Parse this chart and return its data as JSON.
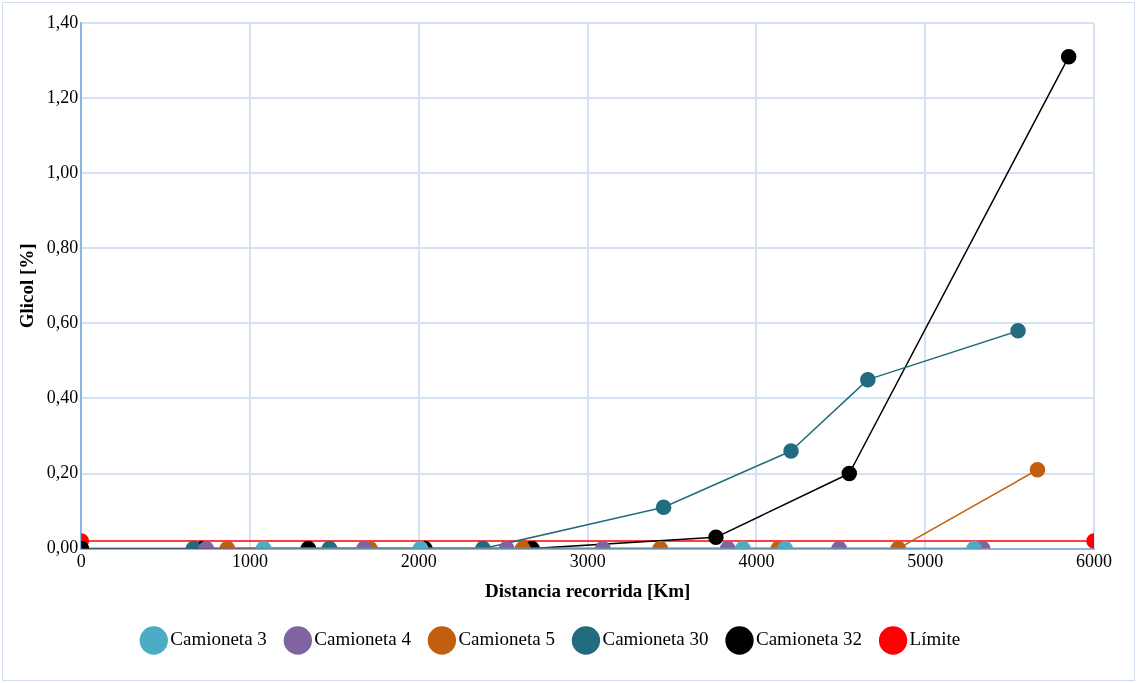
{
  "chart_data": {
    "type": "line",
    "xlabel": "Distancia recorrida [Km]",
    "ylabel": "Glicol [%]",
    "xlim": [
      0,
      6000
    ],
    "xticks": [
      0,
      1000,
      2000,
      3000,
      4000,
      5000,
      6000
    ],
    "ylim": [
      0,
      1.4
    ],
    "yticks": [
      {
        "value": 0,
        "label": "0,00"
      },
      {
        "value": 0.2,
        "label": "0,20"
      },
      {
        "value": 0.4,
        "label": "0,40"
      },
      {
        "value": 0.6,
        "label": "0,60"
      },
      {
        "value": 0.8,
        "label": "0,80"
      },
      {
        "value": 1.0,
        "label": "1,00"
      },
      {
        "value": 1.2,
        "label": "1,20"
      },
      {
        "value": 1.4,
        "label": "1,40"
      }
    ],
    "grid": true,
    "legend": "bottom",
    "marker": "circle",
    "line_style": "solid",
    "series": [
      {
        "name": "Camioneta 3",
        "color": "#4bacc6",
        "x": [
          1080,
          2010,
          3920,
          4170,
          5290
        ],
        "values": [
          0,
          0,
          0,
          0,
          0
        ]
      },
      {
        "name": "Camioneta 4",
        "color": "#8064a2",
        "x": [
          740,
          1675,
          2520,
          3090,
          3830,
          4490,
          5340
        ],
        "values": [
          0,
          0,
          0,
          0,
          0,
          0,
          0
        ]
      },
      {
        "name": "Camioneta 5",
        "color": "#c0600f",
        "x": [
          865,
          1710,
          2615,
          3430,
          4130,
          4840,
          5665
        ],
        "values": [
          0,
          0,
          0,
          0,
          0,
          0,
          0.21
        ]
      },
      {
        "name": "Camioneta 30",
        "color": "#236b7e",
        "x": [
          665,
          1470,
          2380,
          3450,
          4205,
          4660,
          5550
        ],
        "values": [
          0,
          0,
          0,
          0.11,
          0.26,
          0.45,
          0.58
        ]
      },
      {
        "name": "Camioneta 32",
        "color": "#000000",
        "x": [
          0,
          720,
          1345,
          2035,
          2670,
          3760,
          4550,
          5850
        ],
        "values": [
          0,
          0,
          0,
          0,
          0,
          0.03,
          0.2,
          1.31
        ]
      },
      {
        "name": "Límite",
        "color": "#ff0000",
        "x": [
          0,
          6000
        ],
        "values": [
          0.02,
          0.02
        ]
      }
    ]
  }
}
